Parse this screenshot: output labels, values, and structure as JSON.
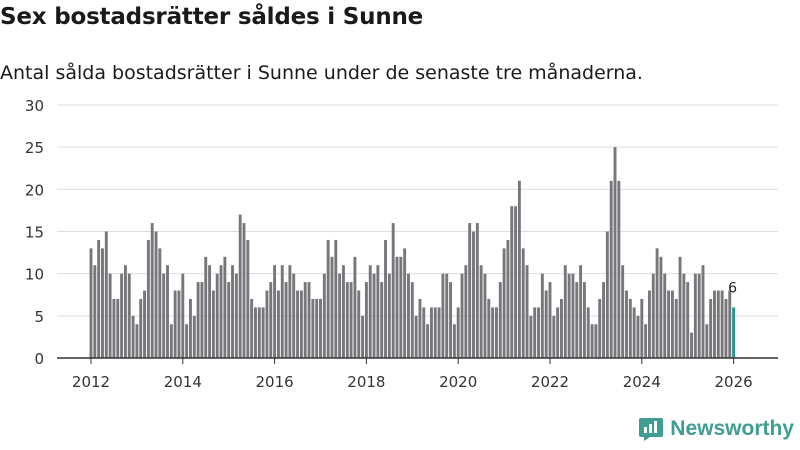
{
  "title": "Sex bostadsrätter såldes i Sunne",
  "subtitle": "Antal sålda bostadsrätter i Sunne under de senaste tre månaderna.",
  "brand": {
    "name": "Newsworthy",
    "icon": "newsworthy-logo-icon"
  },
  "colors": {
    "bar": "#77767b",
    "highlight": "#26978c",
    "grid": "#dddddd",
    "axis": "#333333"
  },
  "chart_data": {
    "type": "bar",
    "x_unit": "month",
    "start": "2012-01",
    "end": "2026-03",
    "ylim": [
      0,
      30
    ],
    "yticks": [
      0,
      5,
      10,
      15,
      20,
      25,
      30
    ],
    "xticks": [
      "2012",
      "2014",
      "2016",
      "2018",
      "2020",
      "2022",
      "2024",
      "2026"
    ],
    "grid": true,
    "xlabel": "",
    "ylabel": "",
    "values": [
      13,
      11,
      14,
      13,
      15,
      10,
      7,
      7,
      10,
      11,
      10,
      5,
      4,
      7,
      8,
      14,
      16,
      15,
      13,
      10,
      11,
      4,
      8,
      8,
      10,
      4,
      7,
      5,
      9,
      9,
      12,
      11,
      8,
      10,
      11,
      12,
      9,
      11,
      10,
      17,
      16,
      14,
      7,
      6,
      6,
      6,
      8,
      9,
      11,
      8,
      11,
      9,
      11,
      10,
      8,
      8,
      9,
      9,
      7,
      7,
      7,
      10,
      14,
      12,
      14,
      10,
      11,
      9,
      9,
      12,
      8,
      5,
      9,
      11,
      10,
      11,
      9,
      14,
      10,
      16,
      12,
      12,
      13,
      10,
      9,
      5,
      7,
      6,
      4,
      6,
      6,
      6,
      10,
      10,
      9,
      4,
      6,
      10,
      11,
      16,
      15,
      16,
      11,
      10,
      7,
      6,
      6,
      9,
      13,
      14,
      18,
      18,
      21,
      13,
      11,
      5,
      6,
      6,
      10,
      8,
      9,
      5,
      6,
      7,
      11,
      10,
      10,
      9,
      11,
      9,
      6,
      4,
      4,
      7,
      9,
      15,
      21,
      25,
      21,
      11,
      8,
      7,
      6,
      5,
      7,
      4,
      8,
      10,
      13,
      12,
      10,
      8,
      8,
      7,
      12,
      10,
      9,
      3,
      10,
      10,
      11,
      4,
      7,
      8,
      8,
      8,
      7,
      8,
      6
    ],
    "highlight_last": true,
    "last_label": "6"
  }
}
